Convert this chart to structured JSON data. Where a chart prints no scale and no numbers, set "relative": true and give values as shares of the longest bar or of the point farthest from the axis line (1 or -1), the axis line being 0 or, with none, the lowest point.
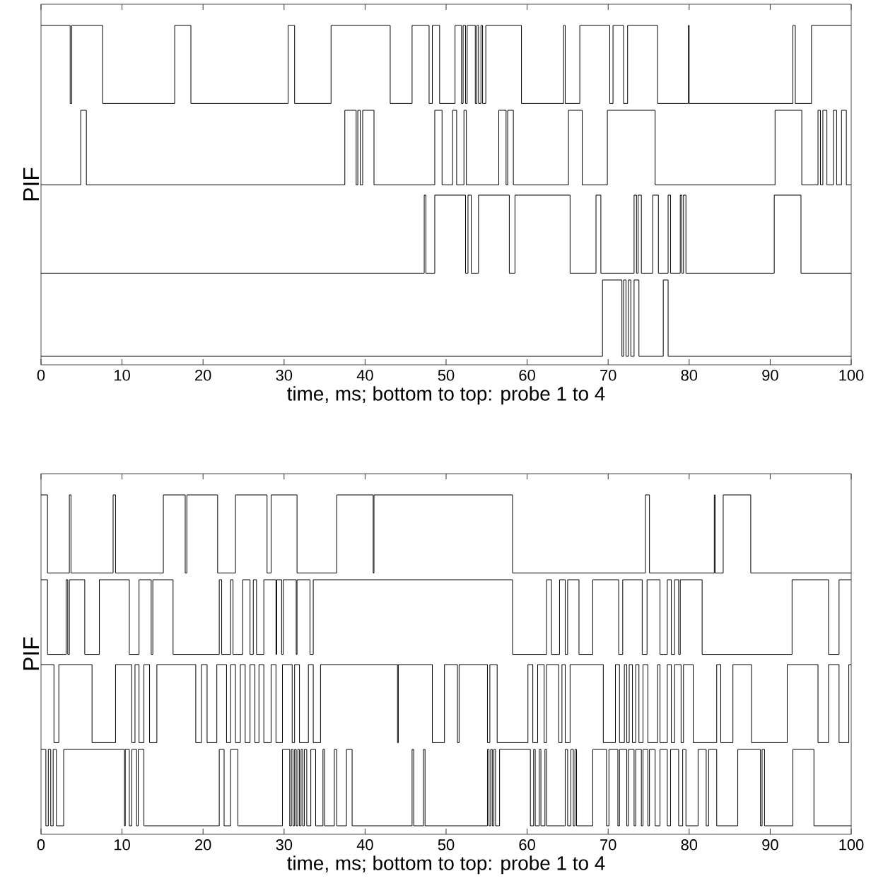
{
  "chart_data": [
    {
      "type": "step",
      "relative": true,
      "xlabel": "time, ms; bottom to top: probe 1 to 4",
      "ylabel": "PIF",
      "xlim": [
        0,
        100
      ],
      "xticks": [
        0,
        10,
        20,
        30,
        40,
        50,
        60,
        70,
        80,
        90,
        100
      ],
      "series": [
        {
          "color": "#000000",
          "x": [
            0,
            69.3,
            71.7,
            71.9,
            72.2,
            72.5,
            72.8,
            73.2,
            73.8,
            76.8,
            77.4,
            100
          ],
          "values": [
            0.025,
            0.25,
            0.025,
            0.25,
            0.025,
            0.25,
            0.025,
            0.25,
            0.025,
            0.25,
            0.025,
            0.025
          ]
        },
        {
          "color": "#000000",
          "x": [
            0,
            47.3,
            47.5,
            48.6,
            52.4,
            52.7,
            53.1,
            54.0,
            57.8,
            58.5,
            65.3,
            68.5,
            69.1,
            73.2,
            73.5,
            73.7,
            74.1,
            75.5,
            76.2,
            77.4,
            77.7,
            78.9,
            79.1,
            79.3,
            79.6,
            90.5,
            93.8,
            100
          ],
          "values": [
            0.27,
            0.5,
            0.27,
            0.5,
            0.27,
            0.5,
            0.27,
            0.5,
            0.27,
            0.5,
            0.27,
            0.5,
            0.27,
            0.5,
            0.27,
            0.5,
            0.27,
            0.5,
            0.27,
            0.5,
            0.27,
            0.5,
            0.27,
            0.5,
            0.27,
            0.5,
            0.27,
            0.27
          ]
        },
        {
          "color": "#000000",
          "x": [
            0,
            4.9,
            5.6,
            37.5,
            38.9,
            39.1,
            39.4,
            39.7,
            41.1,
            48.6,
            49.5,
            50.8,
            51.3,
            52.2,
            52.5,
            56.5,
            57.4,
            57.6,
            58.3,
            65.1,
            66.8,
            69.9,
            75.8,
            90.6,
            93.9,
            95.9,
            96.2,
            96.5,
            97.0,
            97.8,
            98.2,
            98.8,
            99.4,
            100
          ],
          "values": [
            0.53,
            0.75,
            0.53,
            0.75,
            0.53,
            0.75,
            0.53,
            0.75,
            0.53,
            0.75,
            0.53,
            0.75,
            0.53,
            0.75,
            0.53,
            0.75,
            0.53,
            0.75,
            0.53,
            0.75,
            0.53,
            0.75,
            0.53,
            0.75,
            0.53,
            0.75,
            0.53,
            0.75,
            0.53,
            0.75,
            0.53,
            0.75,
            0.53,
            0.53
          ]
        },
        {
          "color": "#000000",
          "x": [
            0,
            3.6,
            3.8,
            7.6,
            16.5,
            18.5,
            30.5,
            31.3,
            35.8,
            43.1,
            45.8,
            47.9,
            48.3,
            49.2,
            51.1,
            51.9,
            52.1,
            52.4,
            52.6,
            53.6,
            53.8,
            54.0,
            54.3,
            54.5,
            54.9,
            59.3,
            64.5,
            64.7,
            66.5,
            70.2,
            70.6,
            71.9,
            72.4,
            76.1,
            79.9,
            80.0,
            92.8,
            93.1,
            95.1,
            100
          ],
          "values": [
            1,
            0.77,
            1,
            0.77,
            1,
            0.77,
            1,
            0.77,
            1,
            0.77,
            1,
            0.77,
            1,
            0.77,
            1,
            0.77,
            1,
            0.77,
            1,
            0.77,
            1,
            0.77,
            1,
            0.77,
            1,
            0.77,
            1,
            0.77,
            1,
            0.77,
            1,
            0.77,
            1,
            0.77,
            1,
            0.77,
            1,
            0.77,
            1,
            1
          ]
        }
      ]
    },
    {
      "type": "step",
      "relative": true,
      "xlabel": "time, ms; bottom to top: probe 1 to 4",
      "ylabel": "PIF",
      "xlim": [
        0,
        100
      ],
      "xticks": [
        0,
        10,
        20,
        30,
        40,
        50,
        60,
        70,
        80,
        90,
        100
      ],
      "series": [
        {
          "color": "#000000",
          "x": [
            0,
            0.6,
            0.9,
            1.2,
            1.5,
            1.9,
            2.8,
            10.3,
            10.4,
            10.9,
            11.2,
            11.8,
            12.0,
            12.7,
            22.0,
            22.6,
            23.4,
            24.3,
            29.8,
            30.7,
            30.9,
            31.1,
            31.3,
            31.5,
            31.7,
            31.9,
            32.1,
            32.3,
            32.5,
            32.8,
            33.3,
            33.9,
            34.8,
            35.0,
            36.2,
            36.5,
            37.7,
            38.4,
            45.8,
            46.0,
            47.2,
            47.4,
            55.1,
            55.3,
            55.5,
            55.7,
            55.9,
            56.1,
            56.6,
            60.4,
            60.8,
            61.0,
            61.5,
            61.7,
            62.2,
            62.4,
            64.7,
            65.0,
            65.4,
            65.7,
            65.9,
            66.1,
            68.1,
            69.8,
            70.1,
            71.2,
            71.4,
            72.3,
            72.5,
            73.2,
            73.4,
            74.1,
            74.3,
            74.9,
            75.1,
            75.8,
            76.4,
            77.3,
            77.7,
            78.7,
            79.2,
            79.6,
            81.1,
            82.1,
            82.4,
            83.4,
            86.0,
            88.8,
            89.0,
            89.3,
            92.8,
            95.4,
            100
          ],
          "values": [
            0.25,
            0.025,
            0.25,
            0.025,
            0.25,
            0.025,
            0.25,
            0.025,
            0.25,
            0.025,
            0.25,
            0.025,
            0.25,
            0.025,
            0.25,
            0.025,
            0.25,
            0.025,
            0.25,
            0.025,
            0.25,
            0.025,
            0.25,
            0.025,
            0.25,
            0.025,
            0.25,
            0.025,
            0.25,
            0.025,
            0.25,
            0.025,
            0.25,
            0.025,
            0.25,
            0.025,
            0.25,
            0.025,
            0.25,
            0.025,
            0.25,
            0.025,
            0.25,
            0.025,
            0.25,
            0.025,
            0.25,
            0.025,
            0.25,
            0.025,
            0.25,
            0.025,
            0.25,
            0.025,
            0.25,
            0.025,
            0.25,
            0.025,
            0.25,
            0.025,
            0.25,
            0.025,
            0.25,
            0.025,
            0.25,
            0.025,
            0.25,
            0.025,
            0.25,
            0.025,
            0.25,
            0.025,
            0.25,
            0.025,
            0.25,
            0.025,
            0.25,
            0.025,
            0.25,
            0.025,
            0.25,
            0.025,
            0.25,
            0.025,
            0.25,
            0.025,
            0.25,
            0.025,
            0.25,
            0.025,
            0.25,
            0.025,
            0.025
          ]
        },
        {
          "color": "#000000",
          "x": [
            0,
            1.6,
            2.2,
            6.3,
            9.2,
            11.2,
            11.6,
            12.1,
            12.7,
            13.4,
            14.3,
            19.1,
            19.8,
            20.5,
            21.7,
            22.9,
            23.4,
            24.0,
            24.6,
            25.2,
            25.8,
            26.4,
            26.9,
            27.5,
            28.4,
            29.0,
            29.8,
            31.0,
            31.3,
            31.9,
            33.0,
            33.6,
            34.5,
            44.0,
            44.1,
            48.3,
            49.8,
            51.4,
            51.6,
            55.1,
            55.4,
            56.3,
            60.1,
            60.7,
            61.3,
            62.1,
            62.4,
            63.9,
            64.3,
            64.7,
            65.3,
            69.4,
            70.9,
            71.4,
            72.0,
            72.3,
            72.6,
            73.0,
            73.4,
            73.8,
            74.3,
            74.9,
            76.1,
            76.4,
            77.3,
            77.8,
            78.2,
            79.0,
            79.3,
            80.5,
            83.4,
            83.9,
            85.4,
            87.7,
            92.1,
            95.9,
            97.2,
            98.5,
            99.7,
            100
          ],
          "values": [
            0.5,
            0.27,
            0.5,
            0.27,
            0.5,
            0.27,
            0.5,
            0.27,
            0.5,
            0.27,
            0.5,
            0.27,
            0.5,
            0.27,
            0.5,
            0.27,
            0.5,
            0.27,
            0.5,
            0.27,
            0.5,
            0.27,
            0.5,
            0.27,
            0.5,
            0.27,
            0.5,
            0.27,
            0.5,
            0.27,
            0.5,
            0.27,
            0.5,
            0.27,
            0.5,
            0.27,
            0.5,
            0.27,
            0.5,
            0.27,
            0.5,
            0.27,
            0.5,
            0.27,
            0.5,
            0.27,
            0.5,
            0.27,
            0.5,
            0.27,
            0.5,
            0.27,
            0.5,
            0.27,
            0.5,
            0.27,
            0.5,
            0.27,
            0.5,
            0.27,
            0.5,
            0.27,
            0.5,
            0.27,
            0.5,
            0.27,
            0.5,
            0.27,
            0.5,
            0.27,
            0.5,
            0.27,
            0.5,
            0.27,
            0.5,
            0.27,
            0.5,
            0.27,
            0.5,
            0.5
          ]
        },
        {
          "color": "#000000",
          "x": [
            0,
            0.8,
            3.1,
            3.3,
            3.5,
            5.4,
            7.2,
            10.9,
            12.1,
            13.6,
            13.8,
            16.3,
            22.0,
            22.3,
            23.4,
            23.7,
            24.9,
            25.8,
            26.2,
            26.6,
            27.5,
            29.0,
            29.1,
            29.7,
            29.9,
            31.5,
            31.6,
            33.2,
            33.6,
            58.2,
            62.4,
            63.0,
            64.0,
            64.7,
            65.0,
            66.4,
            68.1,
            71.3,
            71.8,
            74.2,
            74.8,
            76.4,
            77.3,
            77.8,
            78.2,
            78.7,
            78.9,
            81.6,
            92.7,
            97.2,
            98.5,
            100
          ],
          "values": [
            0.75,
            0.53,
            0.75,
            0.53,
            0.75,
            0.53,
            0.75,
            0.53,
            0.75,
            0.53,
            0.75,
            0.53,
            0.75,
            0.53,
            0.75,
            0.53,
            0.75,
            0.53,
            0.75,
            0.53,
            0.75,
            0.53,
            0.75,
            0.53,
            0.75,
            0.53,
            0.75,
            0.53,
            0.75,
            0.53,
            0.75,
            0.53,
            0.75,
            0.53,
            0.75,
            0.53,
            0.75,
            0.53,
            0.75,
            0.53,
            0.75,
            0.53,
            0.75,
            0.53,
            0.75,
            0.53,
            0.75,
            0.53,
            0.75,
            0.53,
            0.75,
            0.75
          ]
        },
        {
          "color": "#000000",
          "x": [
            0,
            0.8,
            3.5,
            3.7,
            8.9,
            9.2,
            15.1,
            17.8,
            18.0,
            21.8,
            24.0,
            27.9,
            28.4,
            31.6,
            36.5,
            41.0,
            41.1,
            58.2,
            74.6,
            75.1,
            83.1,
            83.2,
            84.2,
            87.6,
            100
          ],
          "values": [
            1,
            0.77,
            1,
            0.77,
            1,
            0.77,
            1,
            0.77,
            1,
            0.77,
            1,
            0.77,
            1,
            0.77,
            1,
            0.77,
            1,
            0.77,
            1,
            0.77,
            1,
            0.77,
            1,
            0.77,
            0.77
          ]
        }
      ]
    }
  ]
}
